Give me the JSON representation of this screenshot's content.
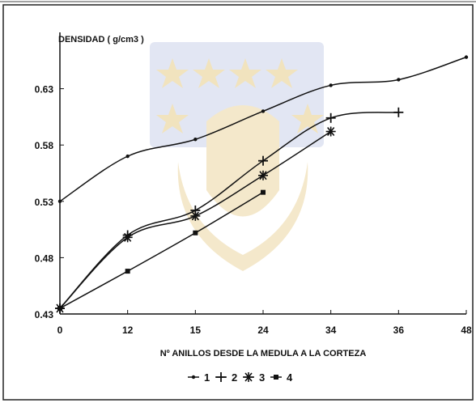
{
  "chart_data": {
    "type": "line",
    "title": "DENSIDAD ( g/cm3 )",
    "xlabel": "Nº ANILLOS DESDE LA MEDULA A LA CORTEZA",
    "ylabel": "",
    "x_tick_labels": [
      "0",
      "12",
      "15",
      "24",
      "34",
      "36",
      "48"
    ],
    "x_tick_values": [
      0,
      1,
      2,
      3,
      4,
      5,
      6
    ],
    "y_tick_labels": [
      "0.43",
      "0.48",
      "0.53",
      "0.58",
      "0.63"
    ],
    "y_tick_values": [
      0.43,
      0.48,
      0.53,
      0.58,
      0.63
    ],
    "xlim": [
      0,
      6
    ],
    "ylim": [
      0.43,
      0.68
    ],
    "grid": false,
    "legend_position": "bottom",
    "series": [
      {
        "name": "1",
        "marker": "dot",
        "points": [
          [
            0,
            0.53
          ],
          [
            1,
            0.57
          ],
          [
            2,
            0.585
          ],
          [
            3,
            0.61
          ],
          [
            4,
            0.633
          ],
          [
            5,
            0.638
          ],
          [
            6,
            0.658
          ]
        ]
      },
      {
        "name": "2",
        "marker": "plus",
        "points": [
          [
            0,
            0.435
          ],
          [
            1,
            0.5
          ],
          [
            2,
            0.522
          ],
          [
            3,
            0.566
          ],
          [
            4,
            0.604
          ],
          [
            5,
            0.609
          ]
        ]
      },
      {
        "name": "3",
        "marker": "asterisk",
        "points": [
          [
            0,
            0.435
          ],
          [
            1,
            0.498
          ],
          [
            2,
            0.517
          ],
          [
            3,
            0.553
          ],
          [
            4,
            0.592
          ]
        ]
      },
      {
        "name": "4",
        "marker": "square",
        "points": [
          [
            0,
            0.435
          ],
          [
            1,
            0.468
          ],
          [
            2,
            0.502
          ],
          [
            3,
            0.538
          ]
        ]
      }
    ]
  }
}
